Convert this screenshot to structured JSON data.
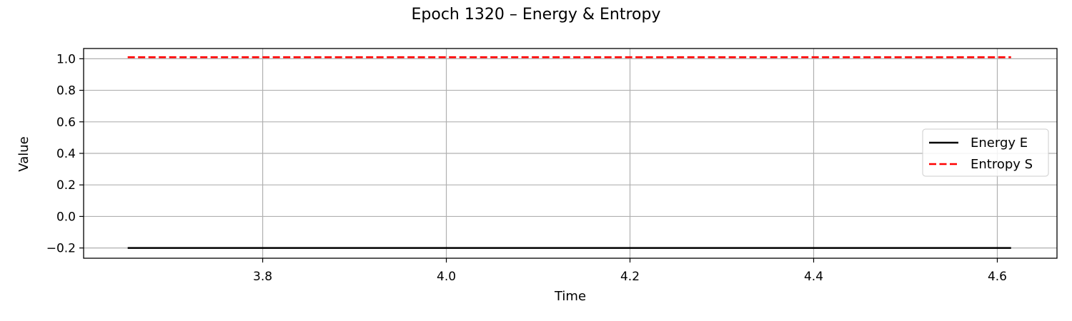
{
  "chart_data": {
    "type": "line",
    "title": "Epoch 1320 – Energy & Entropy",
    "xlabel": "Time",
    "ylabel": "Value",
    "xlim": [
      3.605,
      4.665
    ],
    "ylim": [
      -0.265,
      1.065
    ],
    "xticks": [
      3.8,
      4.0,
      4.2,
      4.4,
      4.6
    ],
    "xtick_labels": [
      "3.8",
      "4.0",
      "4.2",
      "4.4",
      "4.6"
    ],
    "yticks": [
      -0.2,
      0.0,
      0.2,
      0.4,
      0.6,
      0.8,
      1.0
    ],
    "ytick_labels": [
      "−0.2",
      "0.0",
      "0.2",
      "0.4",
      "0.6",
      "0.8",
      "1.0"
    ],
    "grid": true,
    "legend_position": "center-right",
    "series": [
      {
        "name": "Energy E",
        "color": "#000000",
        "style": "solid",
        "x": [
          3.653,
          4.615
        ],
        "y": [
          -0.2,
          -0.2
        ]
      },
      {
        "name": "Entropy S",
        "color": "#ff0000",
        "style": "dashed",
        "x": [
          3.653,
          4.615
        ],
        "y": [
          1.01,
          1.01
        ]
      }
    ]
  }
}
